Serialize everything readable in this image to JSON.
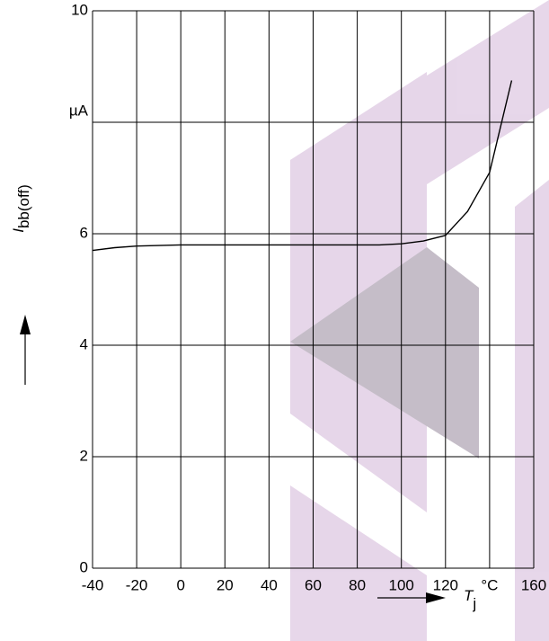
{
  "chart_data": {
    "type": "line",
    "ylabel": {
      "symbol": "I",
      "subscript": "bb(off)"
    },
    "xlabel": {
      "symbol": "T",
      "subscript": "j"
    },
    "x": [
      -40,
      -30,
      -20,
      0,
      20,
      40,
      60,
      80,
      90,
      100,
      110,
      120,
      130,
      140,
      150
    ],
    "series": [
      {
        "color": "#000000",
        "values": [
          5.7,
          5.75,
          5.78,
          5.8,
          5.8,
          5.8,
          5.8,
          5.8,
          5.8,
          5.82,
          5.87,
          5.97,
          6.4,
          7.1,
          8.75
        ]
      }
    ],
    "xlim": [
      -40,
      160
    ],
    "ylim": [
      0,
      10
    ],
    "xticks": [
      -40,
      -20,
      0,
      20,
      40,
      60,
      80,
      100,
      120,
      {
        "value": 140,
        "label": "°C"
      },
      160
    ],
    "yticks": [
      0,
      2,
      4,
      6,
      {
        "value": 8,
        "label": "µA"
      },
      10
    ],
    "grid": true
  }
}
